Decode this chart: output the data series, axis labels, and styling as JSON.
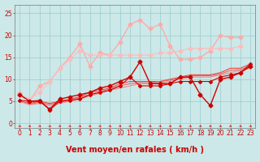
{
  "xlabel": "Vent moyen/en rafales ( km/h )",
  "ylabel": "",
  "bg_color": "#cce8e8",
  "grid_color": "#99cccc",
  "x_values": [
    0,
    1,
    2,
    3,
    4,
    5,
    6,
    7,
    8,
    9,
    10,
    11,
    12,
    13,
    14,
    15,
    16,
    17,
    18,
    19,
    20,
    21,
    22,
    23
  ],
  "ylim": [
    -1,
    27
  ],
  "xlim": [
    -0.5,
    23.5
  ],
  "series": [
    {
      "y": [
        6.5,
        5.0,
        5.0,
        3.2,
        5.5,
        6.0,
        6.5,
        7.0,
        8.0,
        8.5,
        9.5,
        10.5,
        14.0,
        9.0,
        9.0,
        9.0,
        10.5,
        10.5,
        6.5,
        4.0,
        10.0,
        10.5,
        11.5,
        13.0
      ],
      "color": "#cc0000",
      "lw": 1.0,
      "marker": "D",
      "ms": 2.5,
      "zorder": 5
    },
    {
      "y": [
        5.2,
        5.0,
        5.2,
        3.0,
        5.0,
        5.2,
        5.5,
        6.5,
        7.0,
        7.5,
        8.5,
        10.5,
        8.5,
        8.5,
        8.5,
        9.0,
        9.5,
        9.5,
        9.5,
        9.5,
        10.5,
        11.0,
        11.5,
        13.5
      ],
      "color": "#cc0000",
      "lw": 0.8,
      "marker": "P",
      "ms": 2.5,
      "zorder": 4
    },
    {
      "y": [
        5.0,
        4.5,
        5.0,
        4.5,
        5.0,
        5.5,
        6.0,
        7.0,
        7.5,
        8.0,
        9.0,
        9.5,
        9.5,
        9.5,
        9.5,
        10.0,
        10.5,
        11.0,
        11.0,
        11.0,
        11.5,
        12.5,
        12.5,
        13.5
      ],
      "color": "#ee4444",
      "lw": 0.8,
      "marker": null,
      "ms": 0,
      "zorder": 3
    },
    {
      "y": [
        5.0,
        4.3,
        4.8,
        4.3,
        4.8,
        5.3,
        5.8,
        6.5,
        7.2,
        7.8,
        8.5,
        9.0,
        9.2,
        9.2,
        9.5,
        9.8,
        10.2,
        10.8,
        10.8,
        10.8,
        11.2,
        12.0,
        12.2,
        13.0
      ],
      "color": "#ee6666",
      "lw": 0.8,
      "marker": null,
      "ms": 0,
      "zorder": 3
    },
    {
      "y": [
        5.0,
        4.2,
        4.5,
        4.0,
        4.5,
        5.0,
        5.5,
        6.2,
        6.8,
        7.5,
        8.0,
        8.5,
        9.0,
        9.0,
        9.2,
        9.5,
        10.0,
        10.5,
        10.5,
        10.5,
        11.0,
        11.5,
        12.0,
        12.5
      ],
      "color": "#ee8888",
      "lw": 0.8,
      "marker": null,
      "ms": 0,
      "zorder": 3
    },
    {
      "y": [
        6.8,
        5.0,
        8.5,
        9.5,
        12.5,
        15.0,
        18.0,
        13.0,
        16.0,
        15.5,
        18.5,
        22.5,
        23.5,
        21.5,
        22.5,
        17.5,
        14.5,
        14.5,
        15.0,
        16.5,
        20.0,
        19.5,
        19.5,
        null
      ],
      "color": "#ffaaaa",
      "lw": 1.0,
      "marker": "D",
      "ms": 2.5,
      "zorder": 2
    },
    {
      "y": [
        6.5,
        5.5,
        7.0,
        9.5,
        12.5,
        14.5,
        16.5,
        15.5,
        15.5,
        15.5,
        15.5,
        15.5,
        15.5,
        15.5,
        16.0,
        16.0,
        16.5,
        17.0,
        17.0,
        17.0,
        17.0,
        17.0,
        17.5,
        null
      ],
      "color": "#ffbbbb",
      "lw": 0.8,
      "marker": "D",
      "ms": 2.5,
      "zorder": 2
    }
  ],
  "xtick_labels": [
    "0",
    "1",
    "2",
    "3",
    "4",
    "5",
    "6",
    "7",
    "8",
    "9",
    "10",
    "11",
    "12",
    "13",
    "14",
    "15",
    "16",
    "17",
    "18",
    "19",
    "20",
    "21",
    "22",
    "23"
  ],
  "ytick_vals": [
    0,
    5,
    10,
    15,
    20,
    25
  ],
  "arrow_color": "#cc2222",
  "xlabel_color": "#cc0000",
  "xlabel_fontsize": 7,
  "tick_color": "#cc0000",
  "tick_fontsize": 5.5
}
